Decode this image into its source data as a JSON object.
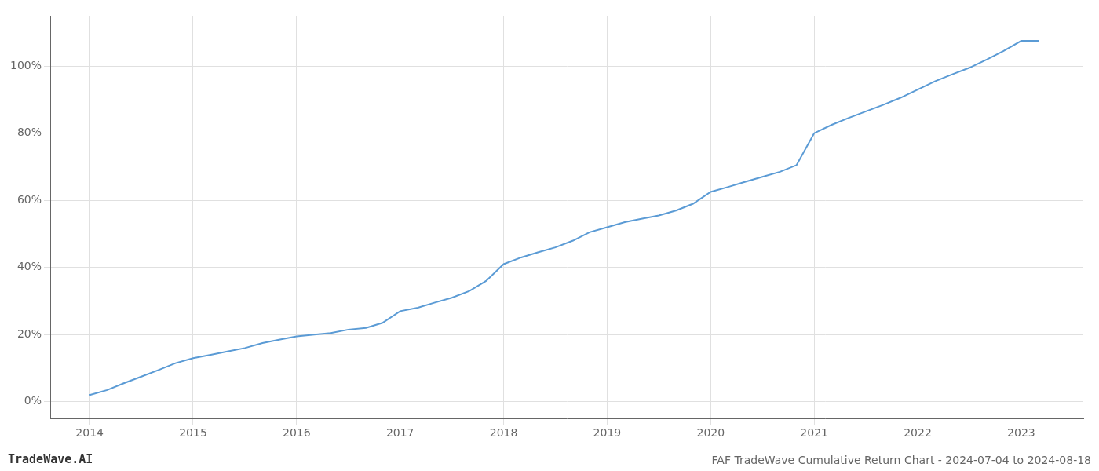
{
  "chart_data": {
    "type": "line",
    "annotations": [
      "TradeWave.AI",
      "FAF TradeWave Cumulative Return Chart - 2024-07-04 to 2024-08-18"
    ],
    "x": [
      2014.0,
      2014.17,
      2014.33,
      2014.5,
      2014.67,
      2014.83,
      2015.0,
      2015.17,
      2015.33,
      2015.5,
      2015.67,
      2015.83,
      2016.0,
      2016.17,
      2016.33,
      2016.5,
      2016.67,
      2016.83,
      2017.0,
      2017.17,
      2017.33,
      2017.5,
      2017.67,
      2017.83,
      2018.0,
      2018.17,
      2018.33,
      2018.5,
      2018.67,
      2018.83,
      2019.0,
      2019.17,
      2019.33,
      2019.5,
      2019.67,
      2019.83,
      2020.0,
      2020.17,
      2020.33,
      2020.5,
      2020.67,
      2020.83,
      2021.0,
      2021.17,
      2021.33,
      2021.5,
      2021.67,
      2021.83,
      2022.0,
      2022.17,
      2022.33,
      2022.5,
      2022.67,
      2022.83,
      2023.0,
      2023.17
    ],
    "values": [
      2.0,
      3.5,
      5.5,
      7.5,
      9.5,
      11.5,
      13.0,
      14.0,
      15.0,
      16.0,
      17.5,
      18.5,
      19.5,
      20.0,
      20.5,
      21.5,
      22.0,
      23.5,
      27.0,
      28.0,
      29.5,
      31.0,
      33.0,
      36.0,
      41.0,
      43.0,
      44.5,
      46.0,
      48.0,
      50.5,
      52.0,
      53.5,
      54.5,
      55.5,
      57.0,
      59.0,
      62.5,
      64.0,
      65.5,
      67.0,
      68.5,
      70.5,
      80.0,
      82.5,
      84.5,
      86.5,
      88.5,
      90.5,
      93.0,
      95.5,
      97.5,
      99.5,
      102.0,
      104.5,
      107.5,
      107.5
    ],
    "color": "#5b9bd5",
    "xlim": [
      2013.62,
      2023.6
    ],
    "ylim": [
      -5,
      115
    ],
    "xticks": [
      2014,
      2015,
      2016,
      2017,
      2018,
      2019,
      2020,
      2021,
      2022,
      2023
    ],
    "yticks": [
      {
        "value": 0,
        "label": "0%"
      },
      {
        "value": 20,
        "label": "20%"
      },
      {
        "value": 40,
        "label": "40%"
      },
      {
        "value": 60,
        "label": "60%"
      },
      {
        "value": 80,
        "label": "80%"
      },
      {
        "value": 100,
        "label": "100%"
      }
    ],
    "grid": true
  }
}
